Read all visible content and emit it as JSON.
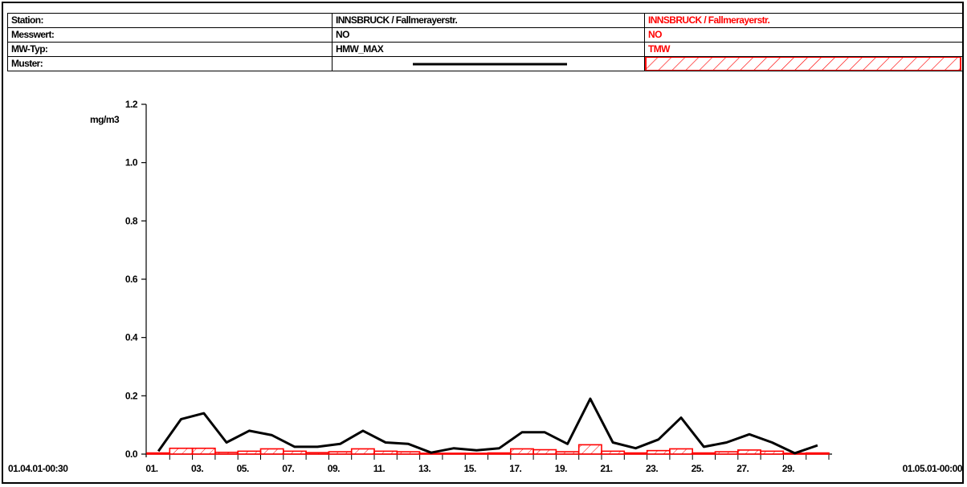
{
  "info_table": {
    "rows": [
      {
        "label": "Station:",
        "series1": "INNSBRUCK / Fallmerayerstr.",
        "series2": "INNSBRUCK / Fallmerayerstr."
      },
      {
        "label": "Messwert:",
        "series1": "NO",
        "series2": "NO"
      },
      {
        "label": "MW-Typ:",
        "series1": "HMW_MAX",
        "series2": "TMW"
      },
      {
        "label": "Muster:",
        "series1": "",
        "series2": ""
      }
    ],
    "colors": {
      "series1": "#000000",
      "series2": "#ff0000"
    }
  },
  "chart_data": {
    "type": "line",
    "ylabel": "mg/m3",
    "ylim": [
      0.0,
      1.2
    ],
    "yticks": [
      "0.0",
      "0.2",
      "0.4",
      "0.6",
      "0.8",
      "1.0",
      "1.2"
    ],
    "x_start_label": "01.04.01-00:30",
    "x_end_label": "01.05.01-00:00",
    "xticks": [
      "01.",
      "03.",
      "05.",
      "07.",
      "09.",
      "11.",
      "13.",
      "15.",
      "17.",
      "19.",
      "21.",
      "23.",
      "25.",
      "27.",
      "29."
    ],
    "days": [
      1,
      2,
      3,
      4,
      5,
      6,
      7,
      8,
      9,
      10,
      11,
      12,
      13,
      14,
      15,
      16,
      17,
      18,
      19,
      20,
      21,
      22,
      23,
      24,
      25,
      26,
      27,
      28,
      29,
      30
    ],
    "series": [
      {
        "name": "HMW_MAX",
        "style": "line",
        "color": "#000000",
        "values": [
          0.01,
          0.12,
          0.14,
          0.04,
          0.08,
          0.065,
          0.025,
          0.025,
          0.035,
          0.08,
          0.04,
          0.035,
          0.005,
          0.02,
          0.013,
          0.02,
          0.075,
          0.075,
          0.035,
          0.19,
          0.04,
          0.02,
          0.05,
          0.125,
          0.025,
          0.04,
          0.068,
          0.04,
          0.003,
          0.03
        ]
      },
      {
        "name": "TMW",
        "style": "hatched-bar",
        "color": "#ff0000",
        "values": [
          0.004,
          0.02,
          0.02,
          0.006,
          0.01,
          0.018,
          0.01,
          0.005,
          0.008,
          0.018,
          0.01,
          0.008,
          0.002,
          0.003,
          0.002,
          0.004,
          0.018,
          0.015,
          0.008,
          0.032,
          0.01,
          0.004,
          0.012,
          0.018,
          0.004,
          0.008,
          0.014,
          0.01,
          0.001,
          0.004
        ]
      }
    ]
  }
}
